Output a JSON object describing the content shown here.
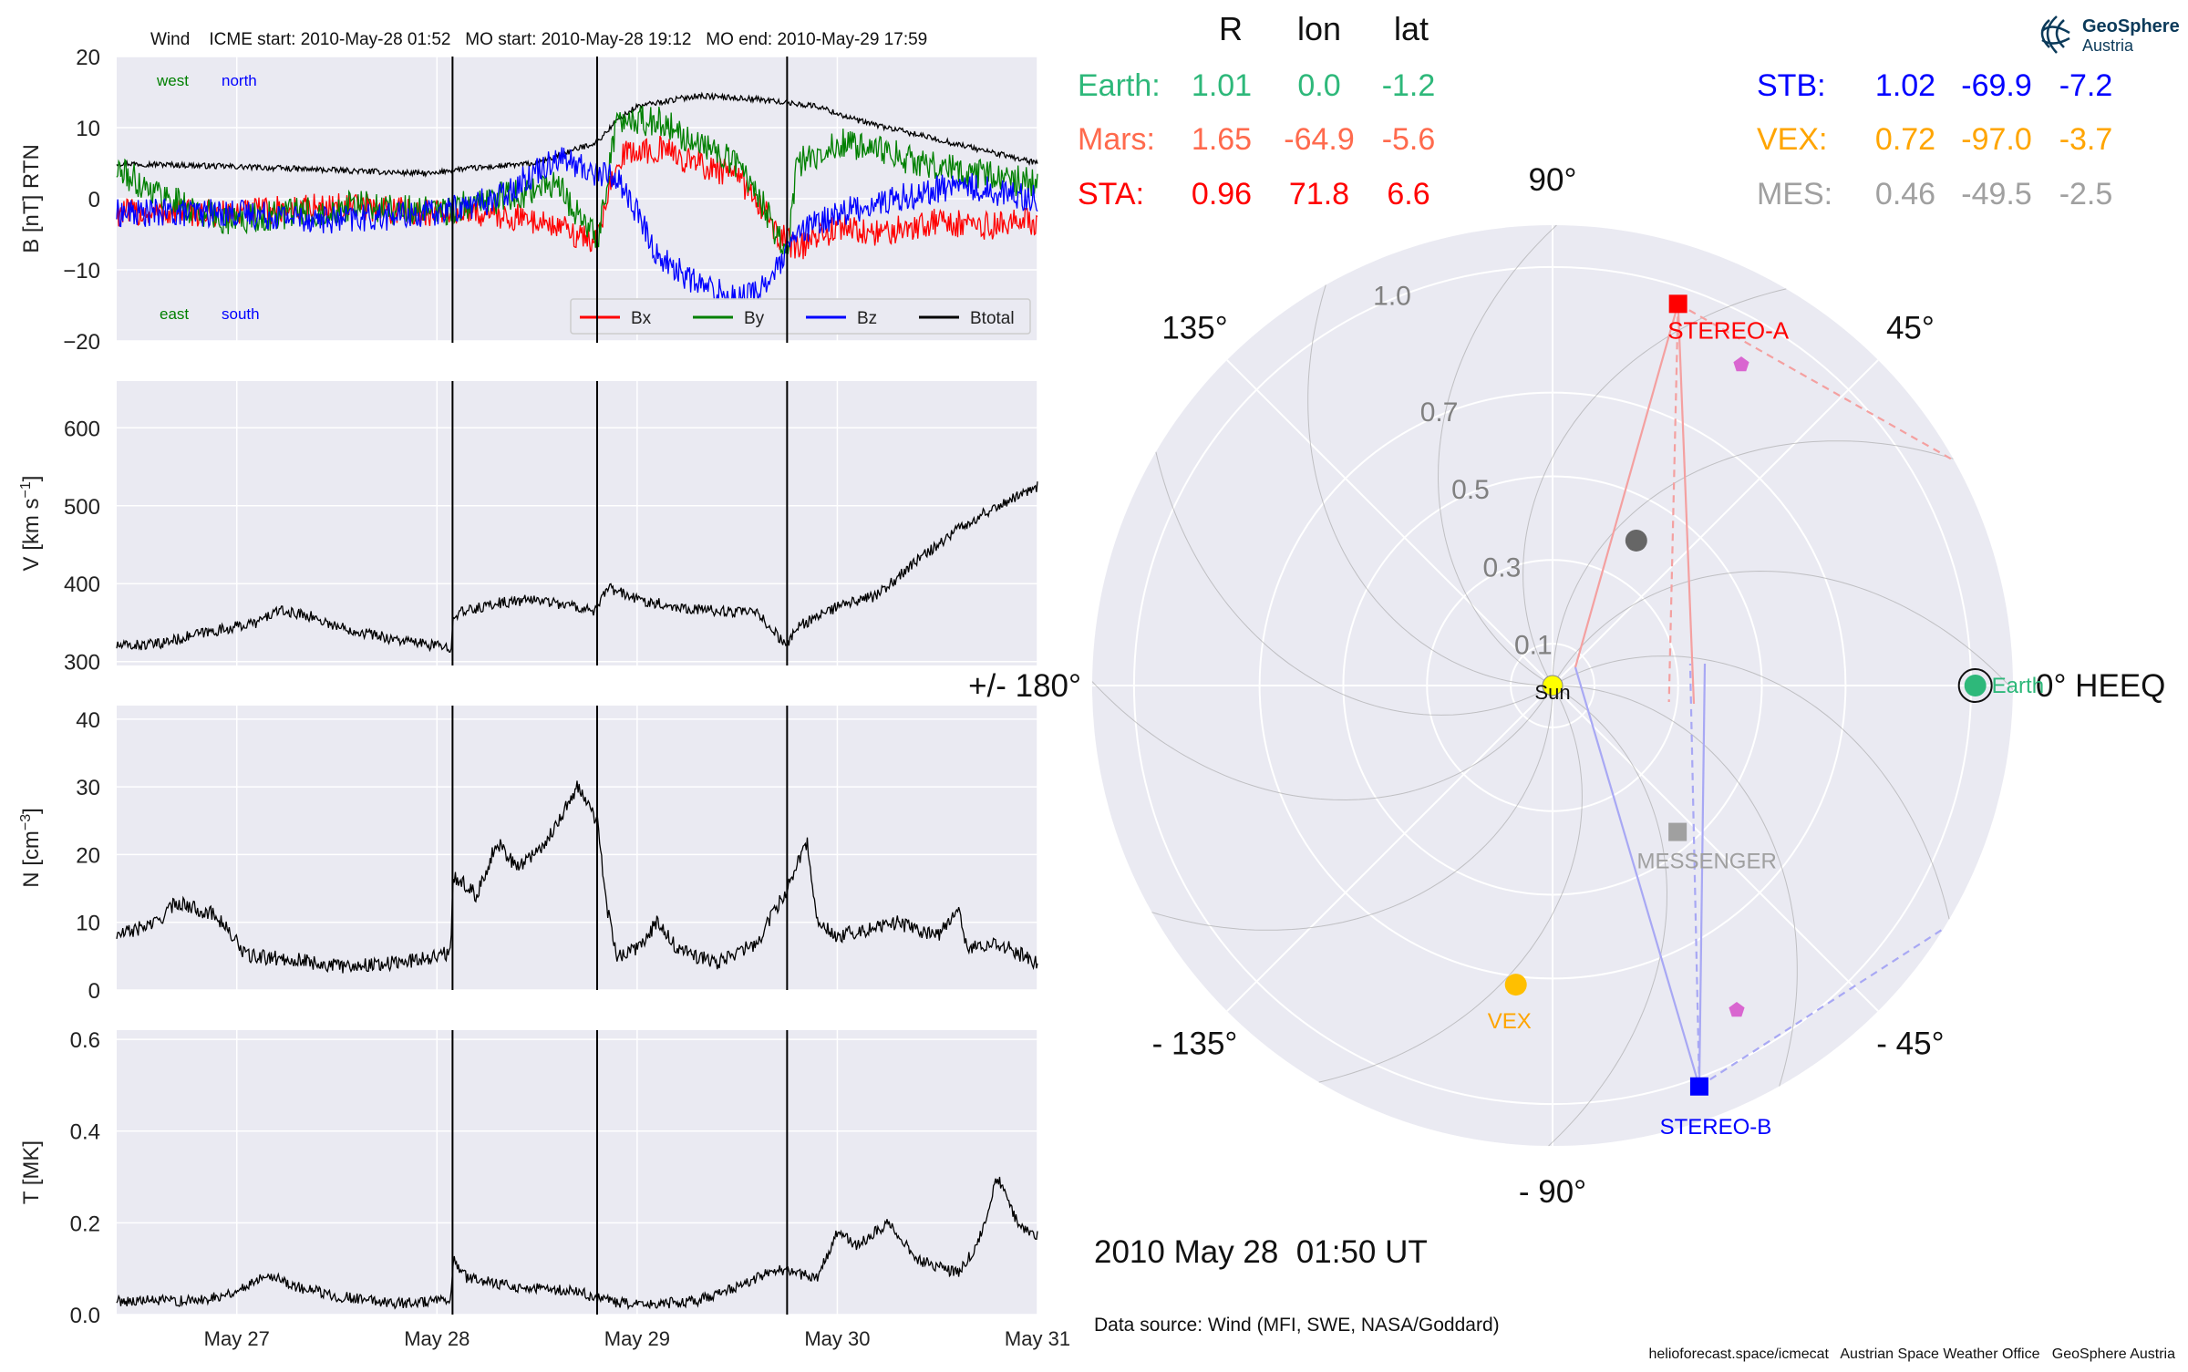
{
  "logo": {
    "line1": "GeoSphere",
    "line2": "Austria",
    "color": "#0b3a5a"
  },
  "top_title": "Wind    ICME start: 2010-May-28 01:52   MO start: 2010-May-28 19:12   MO end: 2010-May-29 17:59",
  "colors": {
    "bx": "#ff0000",
    "by": "#008000",
    "bz": "#0000ff",
    "btotal": "#000000",
    "panel_bg": "#eaeaf2",
    "grid": "#ffffff"
  },
  "chart_data": [
    {
      "type": "line",
      "name": "magnetic-field",
      "ylabel": "B [nT] RTN",
      "ylim": [
        -20,
        20
      ],
      "yticks": [
        20,
        10,
        0,
        -10,
        -20
      ],
      "ytick_labels": [
        "20",
        "10",
        "0",
        "−10",
        "−20"
      ],
      "xlim": [
        -0.6,
        4.0
      ],
      "x_unit": "days since May 27 00:00",
      "annotations": {
        "west": "west",
        "north": "north",
        "east": "east",
        "south": "south"
      },
      "legend": [
        "Bx",
        "By",
        "Bz",
        "Btotal"
      ],
      "legend_position": "lower-right",
      "series": [
        {
          "name": "Btotal",
          "color": "#000000",
          "points": [
            [
              -0.6,
              5
            ],
            [
              0,
              4.5
            ],
            [
              0.5,
              4
            ],
            [
              1,
              3.5
            ],
            [
              1.05,
              4
            ],
            [
              1.5,
              5
            ],
            [
              1.8,
              8
            ],
            [
              1.9,
              11
            ],
            [
              2.0,
              13
            ],
            [
              2.3,
              14.5
            ],
            [
              2.6,
              14
            ],
            [
              2.9,
              13
            ],
            [
              3.1,
              11
            ],
            [
              3.4,
              9
            ],
            [
              3.7,
              7
            ],
            [
              4.0,
              5
            ]
          ]
        },
        {
          "name": "Bx",
          "color": "#ff0000",
          "points": [
            [
              -0.6,
              -2
            ],
            [
              0,
              -2
            ],
            [
              0.5,
              -1
            ],
            [
              1,
              -2
            ],
            [
              1.2,
              -2
            ],
            [
              1.5,
              -3
            ],
            [
              1.7,
              -5
            ],
            [
              1.8,
              -6
            ],
            [
              1.9,
              6
            ],
            [
              2.1,
              7
            ],
            [
              2.3,
              5
            ],
            [
              2.5,
              3
            ],
            [
              2.6,
              0
            ],
            [
              2.7,
              -5
            ],
            [
              2.8,
              -7
            ],
            [
              3.0,
              -4
            ],
            [
              3.2,
              -5
            ],
            [
              3.5,
              -3
            ],
            [
              3.7,
              -4
            ],
            [
              4.0,
              -3
            ]
          ]
        },
        {
          "name": "By",
          "color": "#008000",
          "points": [
            [
              -0.6,
              4
            ],
            [
              -0.4,
              1
            ],
            [
              -0.2,
              -2
            ],
            [
              0,
              -3
            ],
            [
              0.3,
              -2
            ],
            [
              0.6,
              -1
            ],
            [
              1,
              -2
            ],
            [
              1.3,
              0
            ],
            [
              1.6,
              2
            ],
            [
              1.8,
              -6
            ],
            [
              1.9,
              11
            ],
            [
              2.1,
              11
            ],
            [
              2.3,
              8
            ],
            [
              2.5,
              5
            ],
            [
              2.6,
              1
            ],
            [
              2.75,
              -8
            ],
            [
              2.8,
              5
            ],
            [
              3.0,
              8
            ],
            [
              3.3,
              6
            ],
            [
              3.6,
              4
            ],
            [
              4.0,
              2
            ]
          ]
        },
        {
          "name": "Bz",
          "color": "#0000ff",
          "points": [
            [
              -0.6,
              -2
            ],
            [
              0,
              -2
            ],
            [
              0.5,
              -3
            ],
            [
              1,
              -2
            ],
            [
              1.3,
              0
            ],
            [
              1.6,
              6
            ],
            [
              1.75,
              4
            ],
            [
              1.9,
              3
            ],
            [
              2.0,
              -2
            ],
            [
              2.1,
              -8
            ],
            [
              2.3,
              -12
            ],
            [
              2.5,
              -14
            ],
            [
              2.6,
              -13
            ],
            [
              2.7,
              -10
            ],
            [
              2.8,
              -5
            ],
            [
              3.0,
              -2
            ],
            [
              3.3,
              0
            ],
            [
              3.6,
              2
            ],
            [
              4.0,
              0
            ]
          ]
        }
      ]
    },
    {
      "type": "line",
      "name": "speed",
      "ylabel": "V [km s$^{-1}$]",
      "ylim": [
        295,
        660
      ],
      "yticks": [
        600,
        500,
        400,
        300
      ],
      "ytick_labels": [
        "600",
        "500",
        "400",
        "300"
      ],
      "xlim": [
        -0.6,
        4.0
      ],
      "series": [
        {
          "name": "V",
          "color": "#000000",
          "points": [
            [
              -0.6,
              320
            ],
            [
              -0.4,
              322
            ],
            [
              -0.2,
              335
            ],
            [
              0,
              345
            ],
            [
              0.1,
              350
            ],
            [
              0.2,
              365
            ],
            [
              0.35,
              360
            ],
            [
              0.5,
              345
            ],
            [
              0.8,
              328
            ],
            [
              1,
              320
            ],
            [
              1.07,
              318
            ],
            [
              1.08,
              360
            ],
            [
              1.3,
              375
            ],
            [
              1.5,
              380
            ],
            [
              1.7,
              370
            ],
            [
              1.8,
              365
            ],
            [
              1.85,
              395
            ],
            [
              2.0,
              380
            ],
            [
              2.2,
              370
            ],
            [
              2.4,
              365
            ],
            [
              2.6,
              362
            ],
            [
              2.75,
              320
            ],
            [
              2.8,
              345
            ],
            [
              3.0,
              370
            ],
            [
              3.2,
              385
            ],
            [
              3.4,
              430
            ],
            [
              3.6,
              470
            ],
            [
              3.8,
              500
            ],
            [
              4.0,
              525
            ]
          ]
        }
      ]
    },
    {
      "type": "line",
      "name": "density",
      "ylabel": "N [cm$^{-3}$]",
      "ylim": [
        0,
        42
      ],
      "yticks": [
        40,
        30,
        20,
        10,
        0
      ],
      "ytick_labels": [
        "40",
        "30",
        "20",
        "10",
        "0"
      ],
      "xlim": [
        -0.6,
        4.0
      ],
      "series": [
        {
          "name": "N",
          "color": "#000000",
          "points": [
            [
              -0.6,
              8
            ],
            [
              -0.4,
              10
            ],
            [
              -0.3,
              13
            ],
            [
              -0.1,
              11
            ],
            [
              0.05,
              5
            ],
            [
              0.3,
              4.5
            ],
            [
              0.5,
              3.5
            ],
            [
              0.8,
              4
            ],
            [
              1.07,
              5.5
            ],
            [
              1.08,
              17
            ],
            [
              1.2,
              14
            ],
            [
              1.3,
              22
            ],
            [
              1.4,
              18
            ],
            [
              1.55,
              22
            ],
            [
              1.7,
              30
            ],
            [
              1.8,
              25
            ],
            [
              1.85,
              12
            ],
            [
              1.9,
              5
            ],
            [
              2.0,
              6
            ],
            [
              2.1,
              10
            ],
            [
              2.2,
              6
            ],
            [
              2.4,
              4
            ],
            [
              2.6,
              7
            ],
            [
              2.75,
              15
            ],
            [
              2.85,
              22
            ],
            [
              2.9,
              10
            ],
            [
              3.0,
              8
            ],
            [
              3.3,
              10
            ],
            [
              3.5,
              8
            ],
            [
              3.6,
              12
            ],
            [
              3.65,
              6
            ],
            [
              3.8,
              7
            ],
            [
              4.0,
              4
            ]
          ]
        }
      ]
    },
    {
      "type": "line",
      "name": "temperature",
      "ylabel": "T [MK]",
      "ylim": [
        0,
        0.62
      ],
      "yticks": [
        0.6,
        0.4,
        0.2,
        0.0
      ],
      "ytick_labels": [
        "0.6",
        "0.4",
        "0.2",
        "0.0"
      ],
      "xlim": [
        -0.6,
        4.0
      ],
      "xticks": [
        0,
        1,
        2,
        3,
        4
      ],
      "xtick_labels": [
        "May 27",
        "May 28",
        "May 29",
        "May 30",
        "May 31"
      ],
      "series": [
        {
          "name": "T",
          "color": "#000000",
          "points": [
            [
              -0.6,
              0.03
            ],
            [
              -0.2,
              0.03
            ],
            [
              0,
              0.05
            ],
            [
              0.15,
              0.09
            ],
            [
              0.3,
              0.06
            ],
            [
              0.5,
              0.04
            ],
            [
              0.8,
              0.025
            ],
            [
              1.07,
              0.03
            ],
            [
              1.08,
              0.12
            ],
            [
              1.15,
              0.08
            ],
            [
              1.4,
              0.06
            ],
            [
              1.7,
              0.05
            ],
            [
              1.85,
              0.03
            ],
            [
              2.0,
              0.02
            ],
            [
              2.3,
              0.03
            ],
            [
              2.55,
              0.07
            ],
            [
              2.7,
              0.1
            ],
            [
              2.9,
              0.08
            ],
            [
              3.0,
              0.18
            ],
            [
              3.1,
              0.15
            ],
            [
              3.25,
              0.2
            ],
            [
              3.4,
              0.12
            ],
            [
              3.6,
              0.09
            ],
            [
              3.7,
              0.15
            ],
            [
              3.8,
              0.3
            ],
            [
              3.9,
              0.2
            ],
            [
              4.0,
              0.17
            ]
          ]
        }
      ]
    },
    {
      "type": "scatter",
      "name": "polar-position-plot",
      "rlim": [
        0,
        1.1
      ],
      "r_tick_values": [
        0.1,
        0.3,
        0.5,
        0.7,
        1.0
      ],
      "r_tick_labels": [
        "0.1",
        "0.3",
        "0.5",
        "0.7",
        "1.0"
      ],
      "angle_tick_values": [
        0,
        45,
        90,
        135,
        180,
        225,
        270,
        315
      ],
      "angle_tick_labels": [
        "0° HEEQ",
        "45°",
        "90°",
        "135°",
        "+/- 180°",
        "- 135°",
        "- 90°",
        "- 45°"
      ],
      "bodies": [
        {
          "name": "Sun",
          "label": "Sun",
          "r": 0.0,
          "lon": 0.0,
          "color": "#ffff00",
          "marker": "circle"
        },
        {
          "name": "Earth",
          "label": "Earth",
          "r": 1.01,
          "lon": 0.0,
          "color": "#2eb87a",
          "marker": "circle"
        },
        {
          "name": "STEREO-A",
          "label": "STEREO-A",
          "r": 0.96,
          "lon": 71.8,
          "color": "#ff0000",
          "marker": "square"
        },
        {
          "name": "STEREO-B",
          "label": "STEREO-B",
          "r": 1.02,
          "lon": -69.9,
          "color": "#0000ff",
          "marker": "square"
        },
        {
          "name": "MESSENGER",
          "label": "MESSENGER",
          "r": 0.46,
          "lon": -49.5,
          "color": "#a0a0a0",
          "marker": "square"
        },
        {
          "name": "VEX",
          "label": "VEX",
          "r": 0.72,
          "lon": -97.0,
          "color": "#ffbf00",
          "marker": "circle"
        },
        {
          "name": "Mercury",
          "label": "",
          "r": 0.4,
          "lon": 60.0,
          "color": "#666666",
          "marker": "circle"
        }
      ]
    }
  ],
  "positions_table": {
    "headers": [
      "R",
      "lon",
      "lat"
    ],
    "rows": [
      {
        "name": "Earth:",
        "R": "1.01",
        "lon": "0.0",
        "lat": "-1.2",
        "color": "#2eb87a"
      },
      {
        "name": "Mars:",
        "R": "1.65",
        "lon": "-64.9",
        "lat": "-5.6",
        "color": "#ff6a4d"
      },
      {
        "name": "STA:",
        "R": "0.96",
        "lon": "71.8",
        "lat": "6.6",
        "color": "#ff0000"
      },
      {
        "name": "STB:",
        "R": "1.02",
        "lon": "-69.9",
        "lat": "-7.2",
        "color": "#0000ff"
      },
      {
        "name": "VEX:",
        "R": "0.72",
        "lon": "-97.0",
        "lat": "-3.7",
        "color": "#ffa500"
      },
      {
        "name": "MES:",
        "R": "0.46",
        "lon": "-49.5",
        "lat": "-2.5",
        "color": "#a0a0a0"
      }
    ]
  },
  "timestamp": "2010 May 28  01:50 UT",
  "data_source": "Data source: Wind (MFI, SWE, NASA/Goddard)",
  "footer": "helioforecast.space/icmecat   Austrian Space Weather Office   GeoSphere Austria"
}
